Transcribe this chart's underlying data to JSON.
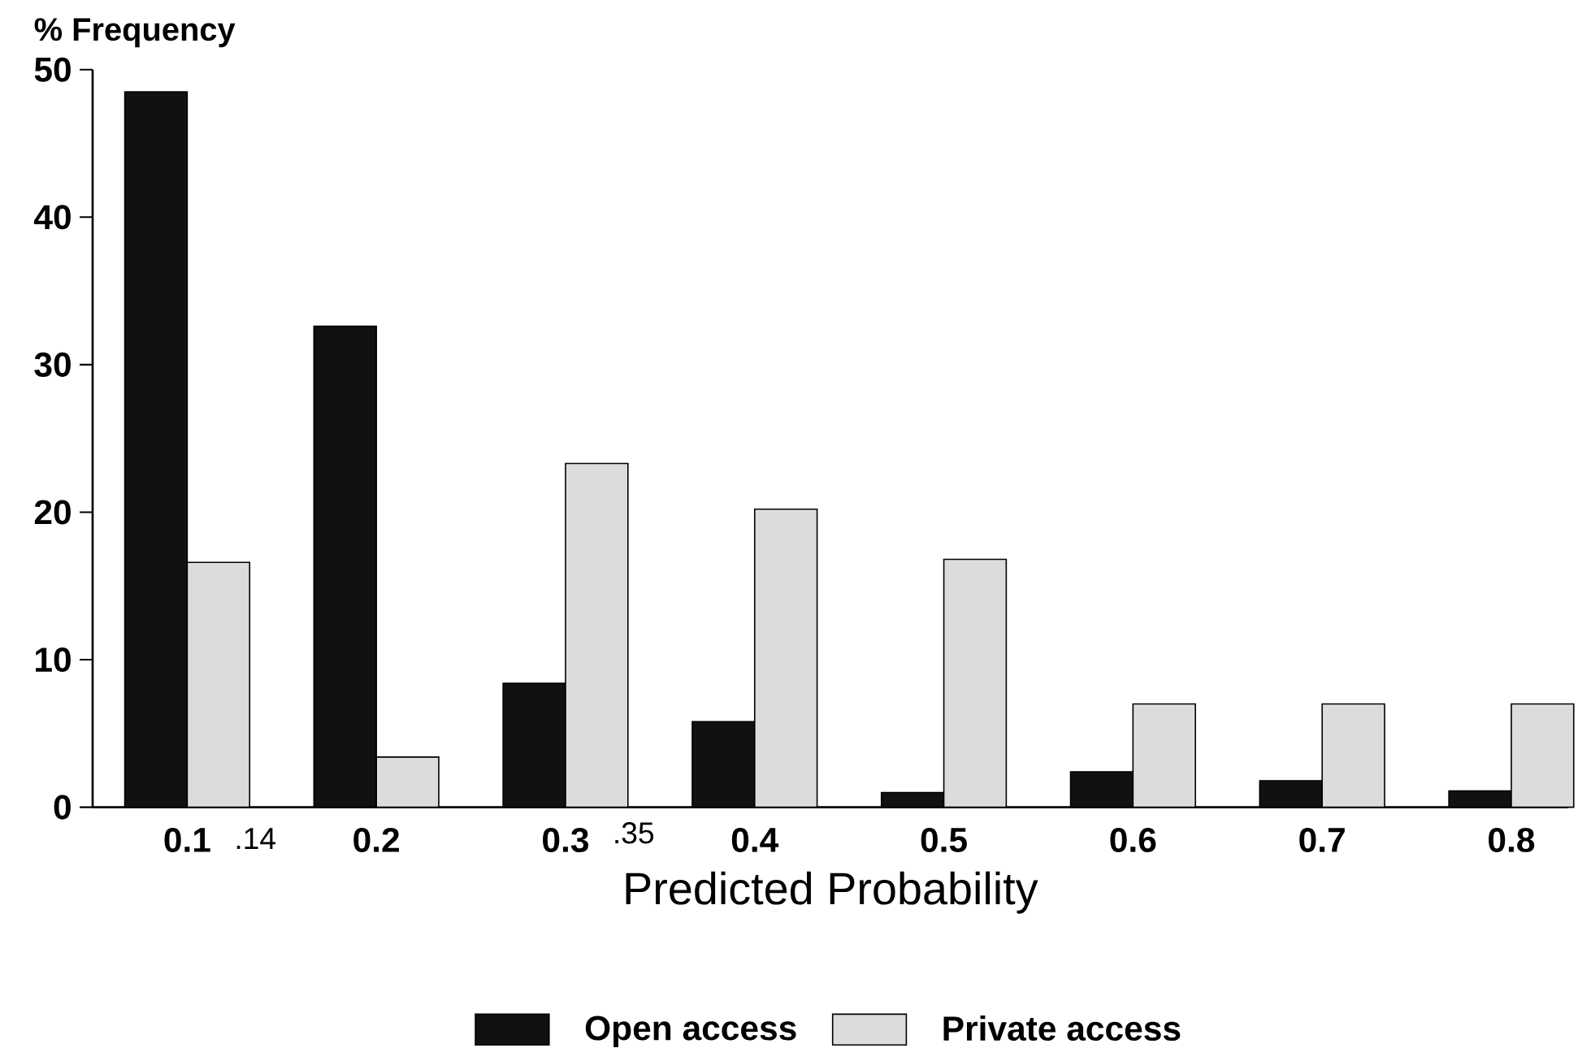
{
  "chart_data": {
    "type": "bar",
    "ylabel": "% Frequency",
    "xlabel": "Predicted Probability",
    "categories": [
      "0.1",
      "0.2",
      "0.3",
      "0.4",
      "0.5",
      "0.6",
      "0.7",
      "0.8"
    ],
    "series": [
      {
        "name": "Open access",
        "color": "#111111",
        "values": [
          48.5,
          32.6,
          8.4,
          5.8,
          1.0,
          2.4,
          1.8,
          1.1
        ]
      },
      {
        "name": "Private access",
        "color": "#dcdcdc",
        "values": [
          16.6,
          3.4,
          23.3,
          20.2,
          16.8,
          7.0,
          7.0,
          7.0
        ]
      }
    ],
    "ylim": [
      0,
      50
    ],
    "yticks": [
      0,
      10,
      20,
      30,
      40,
      50
    ],
    "annotations": [
      ".14",
      ".35"
    ],
    "legend": "bottom",
    "grid": false
  }
}
